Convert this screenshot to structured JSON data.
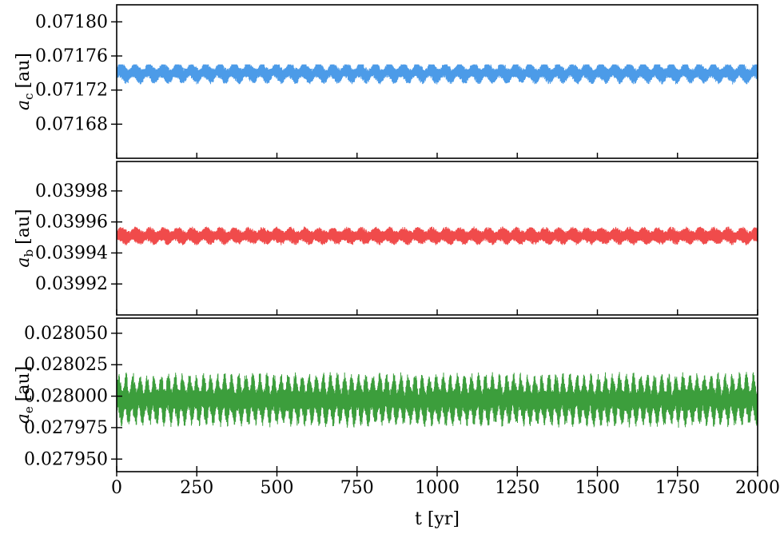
{
  "chart_data": {
    "type": "line",
    "xlabel": "t [yr]",
    "xlim": [
      0,
      2000
    ],
    "x_ticks": [
      0,
      250,
      500,
      750,
      1000,
      1250,
      1500,
      1750,
      2000
    ],
    "x_tick_labels": [
      "0",
      "250",
      "500",
      "750",
      "1000",
      "1250",
      "1500",
      "1750",
      "2000"
    ],
    "panels": [
      {
        "id": "c",
        "ylabel_main": "a",
        "ylabel_sub": "c",
        "ylabel_unit": "[au]",
        "color": "#4C9BE8",
        "ylim": [
          0.07164,
          0.07182
        ],
        "y_ticks": [
          0.07168,
          0.07172,
          0.07176,
          0.0718
        ],
        "y_tick_labels": [
          "0.07168",
          "0.07172",
          "0.07176",
          "0.07180"
        ],
        "series": {
          "mean": 0.07174,
          "fast_amplitude": 1.1e-05,
          "slow_period_yr": 44,
          "slow_amplitude": 7e-06,
          "min": 0.071724,
          "max": 0.07175
        }
      },
      {
        "id": "b",
        "ylabel_main": "a",
        "ylabel_sub": "b",
        "ylabel_unit": "[au]",
        "color": "#F04B4B",
        "ylim": [
          0.0399,
          0.039999
        ],
        "y_ticks": [
          0.03992,
          0.03994,
          0.03996,
          0.03998
        ],
        "y_tick_labels": [
          "0.03992",
          "0.03994",
          "0.03996",
          "0.03998"
        ],
        "series": {
          "mean": 0.039951,
          "fast_amplitude": 5.5e-06,
          "slow_period_yr": 44,
          "slow_amplitude": 2e-06,
          "min": 0.039943,
          "max": 0.039958
        }
      },
      {
        "id": "e",
        "ylabel_main": "a",
        "ylabel_sub": "e",
        "ylabel_unit": "[au]",
        "color": "#3C9E3C",
        "ylim": [
          0.02794,
          0.028062
        ],
        "y_ticks": [
          0.02795,
          0.027975,
          0.028,
          0.028025,
          0.02805
        ],
        "y_tick_labels": [
          "0.027950",
          "0.027975",
          "0.028000",
          "0.028025",
          "0.028050"
        ],
        "series": {
          "mean": 0.027997,
          "fast_amplitude": 1.8e-05,
          "slow_period_yr": 22,
          "slow_amplitude": 1.2e-05,
          "min": 0.02797,
          "max": 0.028034
        }
      }
    ]
  }
}
